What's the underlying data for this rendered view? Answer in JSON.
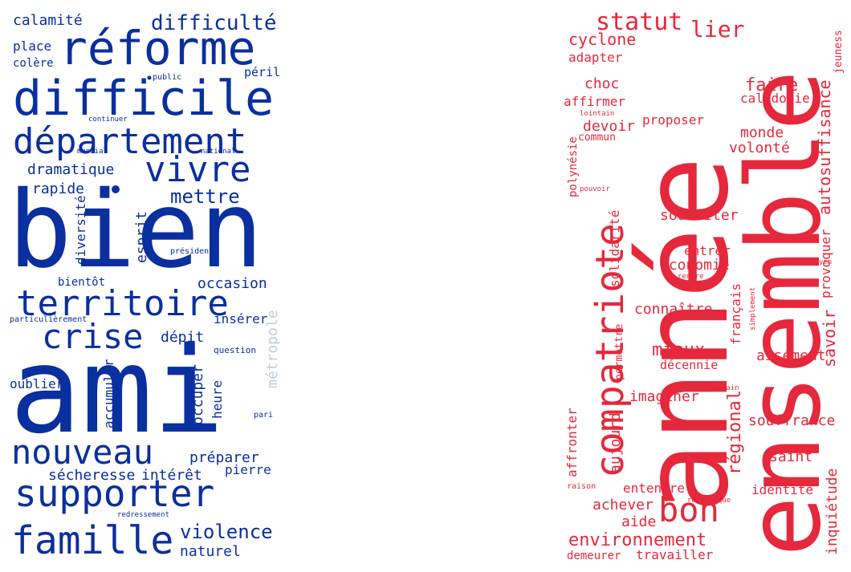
{
  "colors": {
    "blue": "#0a2f9f",
    "pale_blue": "#c3cbe3",
    "red": "#e6283c",
    "background": "#ffffff"
  },
  "left_cloud": {
    "words": [
      {
        "text": "bien"
      },
      {
        "text": "ami"
      },
      {
        "text": "difficile"
      },
      {
        "text": "réforme"
      },
      {
        "text": "département"
      },
      {
        "text": "territoire"
      },
      {
        "text": "supporter"
      },
      {
        "text": "famille"
      },
      {
        "text": "nouveau"
      },
      {
        "text": "vivre"
      },
      {
        "text": "crise"
      },
      {
        "text": "violence"
      },
      {
        "text": "difficulté"
      },
      {
        "text": "mettre"
      },
      {
        "text": "dramatique"
      },
      {
        "text": "calamité"
      },
      {
        "text": "occasion"
      },
      {
        "text": "préparer"
      },
      {
        "text": "sécheresse"
      },
      {
        "text": "intérêt"
      },
      {
        "text": "naturel"
      },
      {
        "text": "place"
      },
      {
        "text": "colère"
      },
      {
        "text": "péril"
      },
      {
        "text": "rapide"
      },
      {
        "text": "esprit"
      },
      {
        "text": "diversité"
      },
      {
        "text": "bientôt"
      },
      {
        "text": "insérer"
      },
      {
        "text": "dépit"
      },
      {
        "text": "métropole"
      },
      {
        "text": "oublier"
      },
      {
        "text": "accumuler"
      },
      {
        "text": "occuper"
      },
      {
        "text": "heure"
      },
      {
        "text": "pierre"
      },
      {
        "text": "public"
      },
      {
        "text": "continuer"
      },
      {
        "text": "mondial"
      },
      {
        "text": "national"
      },
      {
        "text": "président"
      },
      {
        "text": "particulièrement"
      },
      {
        "text": "question"
      },
      {
        "text": "pari"
      },
      {
        "text": "redressement"
      }
    ]
  },
  "right_cloud": {
    "words": [
      {
        "text": "année"
      },
      {
        "text": "ensemble"
      },
      {
        "text": "compatriote"
      },
      {
        "text": "bon"
      },
      {
        "text": "statut"
      },
      {
        "text": "lier"
      },
      {
        "text": "cyclone"
      },
      {
        "text": "adapter"
      },
      {
        "text": "choc"
      },
      {
        "text": "faire"
      },
      {
        "text": "affirmer"
      },
      {
        "text": "calédonie"
      },
      {
        "text": "lointain"
      },
      {
        "text": "proposer"
      },
      {
        "text": "devoir"
      },
      {
        "text": "commun"
      },
      {
        "text": "monde"
      },
      {
        "text": "volonté"
      },
      {
        "text": "autosuffisance"
      },
      {
        "text": "jeuness"
      },
      {
        "text": "polynésie"
      },
      {
        "text": "pouvoir"
      },
      {
        "text": "solidarité"
      },
      {
        "text": "souhaiter"
      },
      {
        "text": "provoquer"
      },
      {
        "text": "action"
      },
      {
        "text": "entrer"
      },
      {
        "text": "économie"
      },
      {
        "text": "concitoyen"
      },
      {
        "text": "rendre"
      },
      {
        "text": "français"
      },
      {
        "text": "connaître"
      },
      {
        "text": "simplement"
      },
      {
        "text": "savoir"
      },
      {
        "text": "mieux"
      },
      {
        "text": "aisément"
      },
      {
        "text": "décennie"
      },
      {
        "text": "permettre"
      },
      {
        "text": "demain"
      },
      {
        "text": "imaginer"
      },
      {
        "text": "régional"
      },
      {
        "text": "aujourd"
      },
      {
        "text": "souffrance"
      },
      {
        "text": "affronter"
      },
      {
        "text": "saint"
      },
      {
        "text": "inquiétude"
      },
      {
        "text": "entendre"
      },
      {
        "text": "identité"
      },
      {
        "text": "raison"
      },
      {
        "text": "république"
      },
      {
        "text": "achever"
      },
      {
        "text": "aide"
      },
      {
        "text": "environnement"
      },
      {
        "text": "demeurer"
      },
      {
        "text": "travailler"
      }
    ]
  }
}
